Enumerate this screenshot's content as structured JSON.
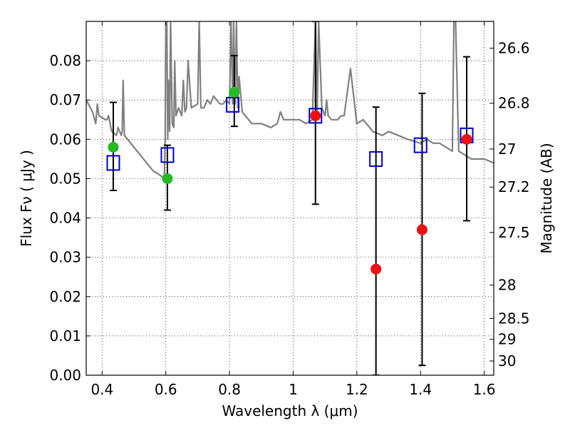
{
  "chart_data": {
    "type": "scatter",
    "title": "",
    "xlabel": "Wavelength  λ (μm)",
    "ylabel": "Flux  Fν  ( μJy )",
    "y2label": "Magnitude (AB)",
    "xlim": [
      0.35,
      1.63
    ],
    "ylim": [
      0.0,
      0.09
    ],
    "grid": true,
    "legend": "none",
    "x_ticks": [
      0.4,
      0.6,
      0.8,
      1.0,
      1.2,
      1.4,
      1.6
    ],
    "x_tick_labels": [
      "0.4",
      "0.6",
      "0.8",
      "1",
      "1.2",
      "1.4",
      "1.6"
    ],
    "y_ticks": [
      0.0,
      0.01,
      0.02,
      0.03,
      0.04,
      0.05,
      0.06,
      0.07,
      0.08
    ],
    "y_tick_labels": [
      "0.00",
      "0.01",
      "0.02",
      "0.03",
      "0.04",
      "0.05",
      "0.06",
      "0.07",
      "0.08"
    ],
    "right_axis_ticks": [
      {
        "mag": 26.6,
        "label": "26.6"
      },
      {
        "mag": 26.8,
        "label": "26.8"
      },
      {
        "mag": 27.0,
        "label": "27"
      },
      {
        "mag": 27.2,
        "label": "27.2"
      },
      {
        "mag": 27.5,
        "label": "27.5"
      },
      {
        "mag": 28.0,
        "label": "28"
      },
      {
        "mag": 28.5,
        "label": "28.5"
      },
      {
        "mag": 29.0,
        "label": "29"
      },
      {
        "mag": 30.0,
        "label": "30"
      }
    ],
    "series": [
      {
        "kind": "spectrum",
        "color": "#808080",
        "x": [
          0.35,
          0.37,
          0.38,
          0.385,
          0.39,
          0.41,
          0.415,
          0.42,
          0.43,
          0.445,
          0.45,
          0.46,
          0.463,
          0.466,
          0.47,
          0.48,
          0.5,
          0.52,
          0.54,
          0.56,
          0.58,
          0.595,
          0.598,
          0.6,
          0.603,
          0.606,
          0.608,
          0.612,
          0.615,
          0.62,
          0.625,
          0.628,
          0.632,
          0.64,
          0.65,
          0.655,
          0.66,
          0.665,
          0.67,
          0.68,
          0.7,
          0.705,
          0.71,
          0.72,
          0.73,
          0.74,
          0.75,
          0.76,
          0.77,
          0.78,
          0.79,
          0.8,
          0.805,
          0.81,
          0.813,
          0.818,
          0.822,
          0.826,
          0.83,
          0.84,
          0.85,
          0.87,
          0.9,
          0.93,
          0.95,
          0.96,
          0.97,
          0.985,
          1.0,
          1.02,
          1.04,
          1.06,
          1.07,
          1.075,
          1.08,
          1.09,
          1.1,
          1.105,
          1.11,
          1.12,
          1.13,
          1.14,
          1.15,
          1.16,
          1.18,
          1.2,
          1.22,
          1.25,
          1.28,
          1.3,
          1.33,
          1.36,
          1.4,
          1.42,
          1.44,
          1.46,
          1.5,
          1.505,
          1.51,
          1.52,
          1.54,
          1.56,
          1.58,
          1.6,
          1.63
        ],
        "y": [
          0.07,
          0.067,
          0.064,
          0.069,
          0.066,
          0.065,
          0.065,
          0.066,
          0.062,
          0.061,
          0.063,
          0.061,
          0.062,
          0.075,
          0.061,
          0.06,
          0.058,
          0.056,
          0.054,
          0.052,
          0.051,
          0.05,
          0.06,
          0.09,
          0.09,
          0.06,
          0.075,
          0.062,
          0.09,
          0.064,
          0.063,
          0.08,
          0.066,
          0.068,
          0.066,
          0.075,
          0.067,
          0.068,
          0.08,
          0.068,
          0.069,
          0.09,
          0.068,
          0.068,
          0.07,
          0.069,
          0.071,
          0.07,
          0.069,
          0.069,
          0.07,
          0.069,
          0.09,
          0.069,
          0.09,
          0.069,
          0.09,
          0.068,
          0.076,
          0.067,
          0.066,
          0.064,
          0.064,
          0.063,
          0.064,
          0.067,
          0.065,
          0.065,
          0.065,
          0.065,
          0.064,
          0.065,
          0.09,
          0.065,
          0.09,
          0.068,
          0.066,
          0.07,
          0.066,
          0.065,
          0.065,
          0.065,
          0.066,
          0.066,
          0.078,
          0.064,
          0.065,
          0.062,
          0.061,
          0.062,
          0.061,
          0.06,
          0.059,
          0.06,
          0.059,
          0.059,
          0.057,
          0.09,
          0.09,
          0.057,
          0.056,
          0.055,
          0.055,
          0.055,
          0.054
        ]
      },
      {
        "kind": "model-points",
        "marker": "open-square",
        "color": "#0000cc",
        "x": [
          0.435,
          0.605,
          0.81,
          1.07,
          1.26,
          1.4,
          1.545
        ],
        "y": [
          0.054,
          0.056,
          0.0688,
          0.066,
          0.055,
          0.0585,
          0.061
        ]
      },
      {
        "kind": "detections",
        "marker": "filled-circle",
        "color": "#22bb22",
        "x": [
          0.435,
          0.605,
          0.815
        ],
        "y": [
          0.058,
          0.05,
          0.072
        ]
      },
      {
        "kind": "detections",
        "marker": "filled-circle",
        "color": "#ee1111",
        "x": [
          1.07,
          1.26,
          1.405,
          1.545
        ],
        "y": [
          0.066,
          0.027,
          0.037,
          0.06
        ]
      },
      {
        "kind": "error-bars",
        "color": "#000000",
        "x": [
          0.435,
          0.605,
          0.815,
          1.07,
          1.26,
          1.405,
          1.545
        ],
        "y_low": [
          0.047,
          0.042,
          0.0633,
          0.0435,
          0.0,
          0.0025,
          0.0393
        ],
        "y_high": [
          0.0694,
          0.0585,
          0.0813,
          0.09,
          0.0682,
          0.0717,
          0.081
        ]
      }
    ]
  }
}
